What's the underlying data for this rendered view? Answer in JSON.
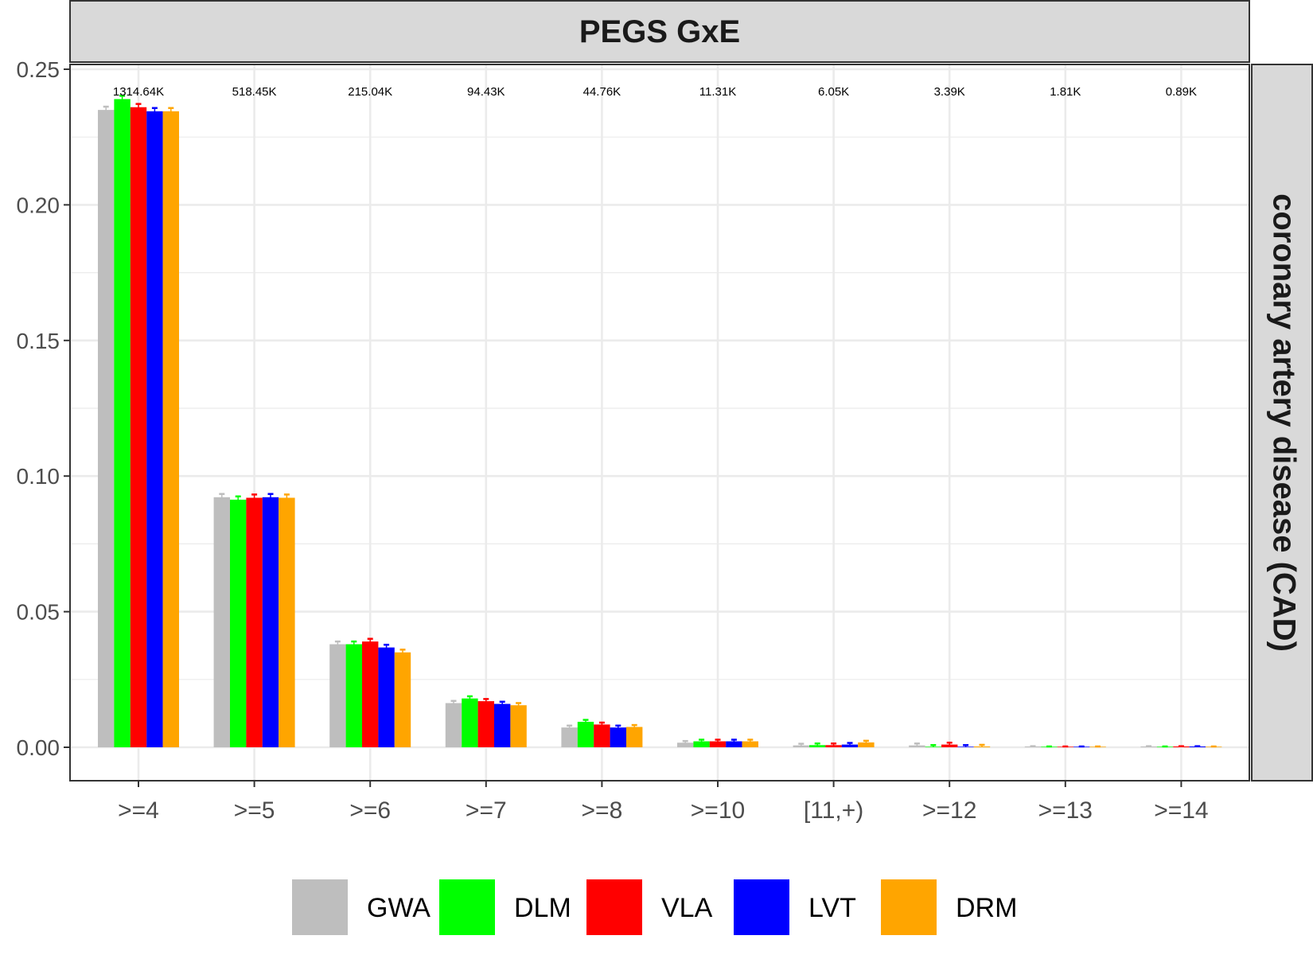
{
  "chart_data": {
    "type": "bar",
    "title": "PEGS GxE",
    "facet_row_label": "coronary artery disease (CAD)",
    "xlabel": "",
    "ylabel": "",
    "ylim": [
      0,
      0.25
    ],
    "y_ticks": [
      "0.00",
      "0.05",
      "0.10",
      "0.15",
      "0.20",
      "0.25"
    ],
    "categories": [
      ">=4",
      ">=5",
      ">=6",
      ">=7",
      ">=8",
      ">=10",
      "[11,+)",
      ">=12",
      ">=13",
      ">=14"
    ],
    "counts": [
      "1314.64K",
      "518.45K",
      "215.04K",
      "94.43K",
      "44.76K",
      "11.31K",
      "6.05K",
      "3.39K",
      "1.81K",
      "0.89K"
    ],
    "grid": true,
    "legend_position": "bottom",
    "series": [
      {
        "name": "GWA",
        "color": "#BEBEBE",
        "values": [
          0.235,
          0.0922,
          0.038,
          0.0163,
          0.0073,
          0.0017,
          0.0007,
          0.0007,
          0.0003,
          0.0003
        ],
        "errors": [
          0.0012,
          0.0012,
          0.001,
          0.0008,
          0.0007,
          0.0006,
          0.0006,
          0.0007,
          0.0001,
          0.0001
        ]
      },
      {
        "name": "DLM",
        "color": "#00FF00",
        "values": [
          0.239,
          0.0913,
          0.038,
          0.018,
          0.0094,
          0.0022,
          0.0008,
          0.0002,
          0.0002,
          0.0002
        ],
        "errors": [
          0.0012,
          0.0012,
          0.001,
          0.0008,
          0.0007,
          0.0006,
          0.0006,
          0.0006,
          0.0001,
          0.0001
        ]
      },
      {
        "name": "VLA",
        "color": "#FF0000",
        "values": [
          0.236,
          0.092,
          0.039,
          0.017,
          0.0084,
          0.0022,
          0.0008,
          0.001,
          0.0002,
          0.0003
        ],
        "errors": [
          0.0012,
          0.0012,
          0.001,
          0.0008,
          0.0007,
          0.0006,
          0.0006,
          0.0007,
          0.0001,
          0.0001
        ]
      },
      {
        "name": "LVT",
        "color": "#0000FF",
        "values": [
          0.2345,
          0.0922,
          0.0368,
          0.016,
          0.0073,
          0.0022,
          0.001,
          0.0002,
          0.0002,
          0.0003
        ],
        "errors": [
          0.0012,
          0.0012,
          0.001,
          0.0008,
          0.0007,
          0.0006,
          0.0006,
          0.0006,
          0.0001,
          0.0001
        ]
      },
      {
        "name": "DRM",
        "color": "#FFA500",
        "values": [
          0.2345,
          0.092,
          0.035,
          0.0155,
          0.0075,
          0.0022,
          0.0018,
          0.0003,
          0.0002,
          0.0002
        ],
        "errors": [
          0.0012,
          0.0012,
          0.001,
          0.0008,
          0.0007,
          0.0006,
          0.0006,
          0.0006,
          0.0001,
          0.0001
        ]
      }
    ]
  }
}
